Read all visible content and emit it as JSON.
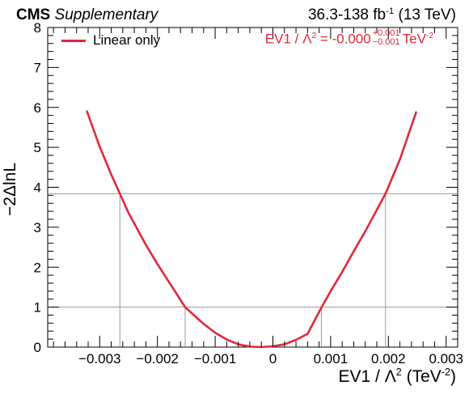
{
  "header": {
    "cms_bold": "CMS",
    "cms_italic": "Supplementary",
    "lumi_prefix": "36.3-138 fb",
    "lumi_sup": "-1",
    "lumi_suffix": "(13 TeV)"
  },
  "legend": {
    "label": "Linear only"
  },
  "result": {
    "prefix": "EV1 / Λ",
    "sup2": "2",
    "value": " = -0.000",
    "plus": "+0.001",
    "minus": "−0.001",
    "unit": "TeV",
    "unit_sup": "-2"
  },
  "axes": {
    "ylabel": "−2ΔlnL",
    "xlabel_prefix": "EV1 / Λ",
    "xlabel_sup2": "2",
    "xlabel_unit": " (TeV",
    "xlabel_unit_sup": "-2",
    "xlabel_close": ")"
  },
  "colors": {
    "curve": "#e0283c",
    "result_text": "#e0283c",
    "threshold_lines": "#999999",
    "axes": "#000000"
  },
  "chart_data": {
    "type": "line",
    "xlim": [
      -0.0039,
      0.0032
    ],
    "ylim": [
      0,
      8
    ],
    "x_ticks": [
      -0.003,
      -0.002,
      -0.001,
      0,
      0.001,
      0.002,
      0.003
    ],
    "x_tick_labels": [
      "−0.003",
      "−0.002",
      "−0.001",
      "0",
      "0.001",
      "0.002",
      "0.003"
    ],
    "y_ticks": [
      0,
      1,
      2,
      3,
      4,
      5,
      6,
      7,
      8
    ],
    "y_tick_labels": [
      "0",
      "1",
      "2",
      "3",
      "4",
      "5",
      "6",
      "7",
      "8"
    ],
    "grid": false,
    "legend_position": "top-left",
    "series": [
      {
        "name": "Linear only",
        "color": "#e0283c",
        "x": [
          -0.00322,
          -0.003,
          -0.0028,
          -0.00265,
          -0.0025,
          -0.0022,
          -0.002,
          -0.0018,
          -0.00152,
          -0.0012,
          -0.001,
          -0.0008,
          -0.0006,
          -0.0004,
          -0.0002,
          0.0,
          0.0002,
          0.0004,
          0.0006,
          0.00084,
          0.001,
          0.0012,
          0.0014,
          0.0016,
          0.00195,
          0.0022,
          0.00248
        ],
        "y": [
          5.9,
          5.02,
          4.32,
          3.84,
          3.36,
          2.56,
          2.08,
          1.63,
          1.0,
          0.58,
          0.36,
          0.19,
          0.07,
          0.01,
          0.0,
          0.02,
          0.07,
          0.18,
          0.33,
          0.99,
          1.4,
          1.88,
          2.4,
          2.9,
          3.84,
          4.7,
          5.88
        ]
      }
    ],
    "threshold_levels": [
      1,
      3.84
    ],
    "threshold_crossings": {
      "1": [
        -0.00152,
        0.00084
      ],
      "3.84": [
        -0.00265,
        0.00195
      ]
    }
  }
}
